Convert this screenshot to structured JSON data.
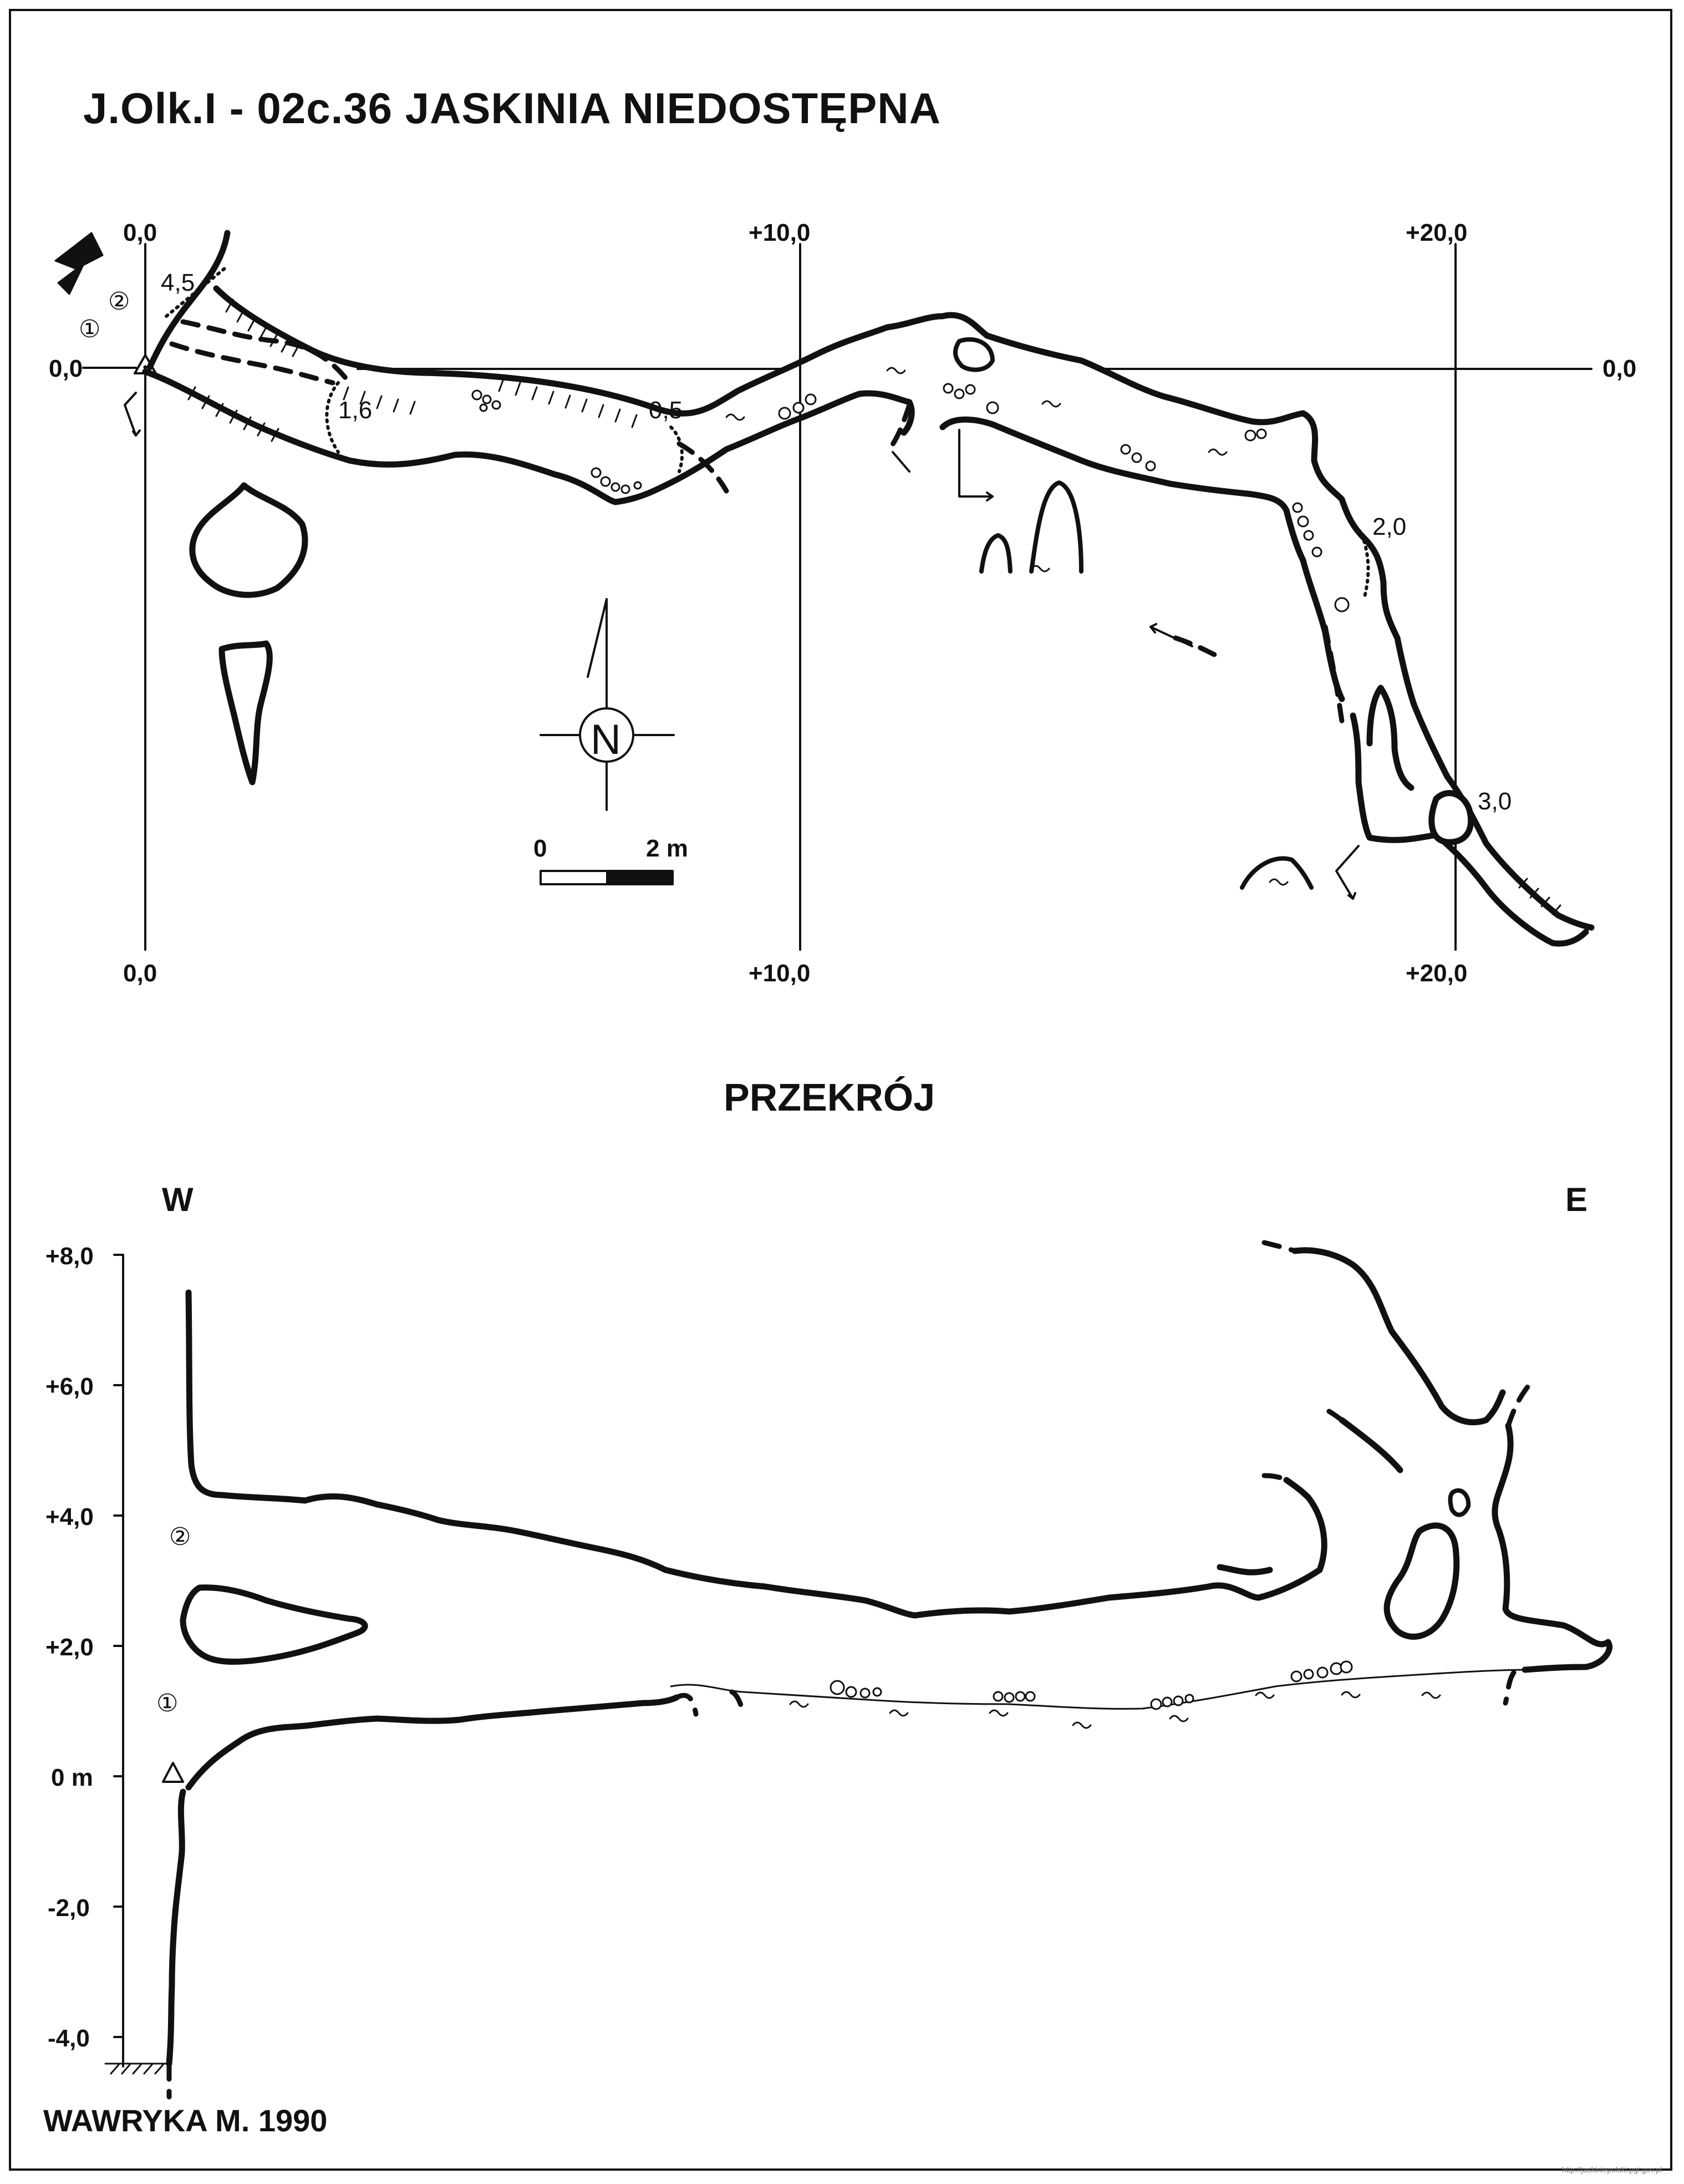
{
  "title": "J.Olk.I - 02c.36  JASKINIA NIEDOSTĘPNA",
  "plan": {
    "grid_labels": {
      "top": [
        "0,0",
        "+10,0",
        "+20,0"
      ],
      "bottom": [
        "0,0",
        "+10,0",
        "+20,0"
      ],
      "left": "0,0",
      "right": "0,0"
    },
    "depth_marks": [
      "4,5",
      "1,6",
      "0,5",
      "2,0",
      "3,0"
    ],
    "entrance_numbers": [
      "①",
      "②"
    ],
    "north_label": "N",
    "scale": {
      "start": "0",
      "end": "2 m"
    }
  },
  "section": {
    "heading": "PRZEKRÓJ",
    "west_label": "W",
    "east_label": "E",
    "y_axis_labels": [
      "+8,0",
      "+6,0",
      "+4,0",
      "+2,0",
      "0 m",
      "-2,0",
      "-4,0"
    ],
    "entrance_numbers": [
      "②",
      "①"
    ]
  },
  "author": "WAWRYKA M. 1990",
  "watermark": "http://jaskiniepolski.pgi.gov.pl"
}
